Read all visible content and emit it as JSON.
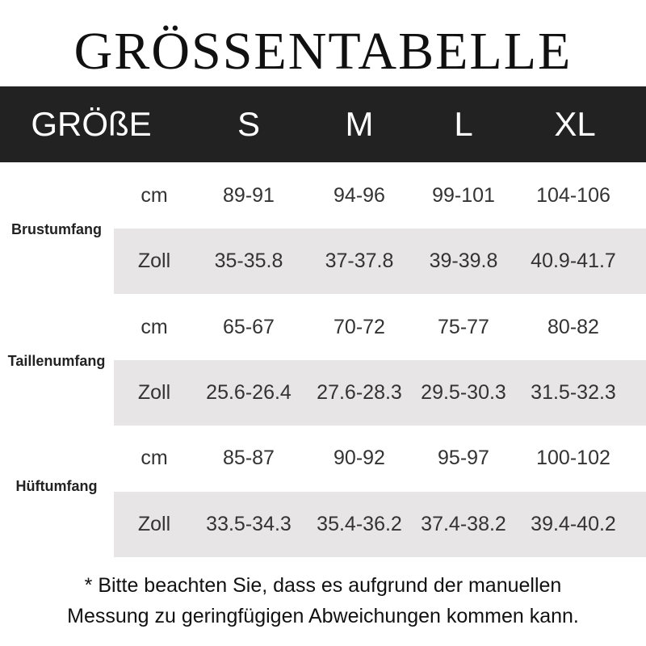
{
  "title": "GRÖSSENTABELLE",
  "header": {
    "size_label": "GRÖßE",
    "sizes": [
      "S",
      "M",
      "L",
      "XL"
    ]
  },
  "measurements": [
    {
      "name": "Brustumfang",
      "rows": [
        {
          "unit": "cm",
          "values": [
            "89-91",
            "94-96",
            "99-101",
            "104-106"
          ]
        },
        {
          "unit": "Zoll",
          "values": [
            "35-35.8",
            "37-37.8",
            "39-39.8",
            "40.9-41.7"
          ]
        }
      ]
    },
    {
      "name": "Taillenumfang",
      "rows": [
        {
          "unit": "cm",
          "values": [
            "65-67",
            "70-72",
            "75-77",
            "80-82"
          ]
        },
        {
          "unit": "Zoll",
          "values": [
            "25.6-26.4",
            "27.6-28.3",
            "29.5-30.3",
            "31.5-32.3"
          ]
        }
      ]
    },
    {
      "name": "Hüftumfang",
      "rows": [
        {
          "unit": "cm",
          "values": [
            "85-87",
            "90-92",
            "95-97",
            "100-102"
          ]
        },
        {
          "unit": "Zoll",
          "values": [
            "33.5-34.3",
            "35.4-36.2",
            "37.4-38.2",
            "39.4-40.2"
          ]
        }
      ]
    }
  ],
  "note": [
    "* Bitte beachten Sie, dass es aufgrund der manuellen",
    "Messung zu geringfügigen Abweichungen kommen kann."
  ],
  "colors": {
    "header_bg": "#222222",
    "stripe_bg": "#e7e5e6"
  }
}
